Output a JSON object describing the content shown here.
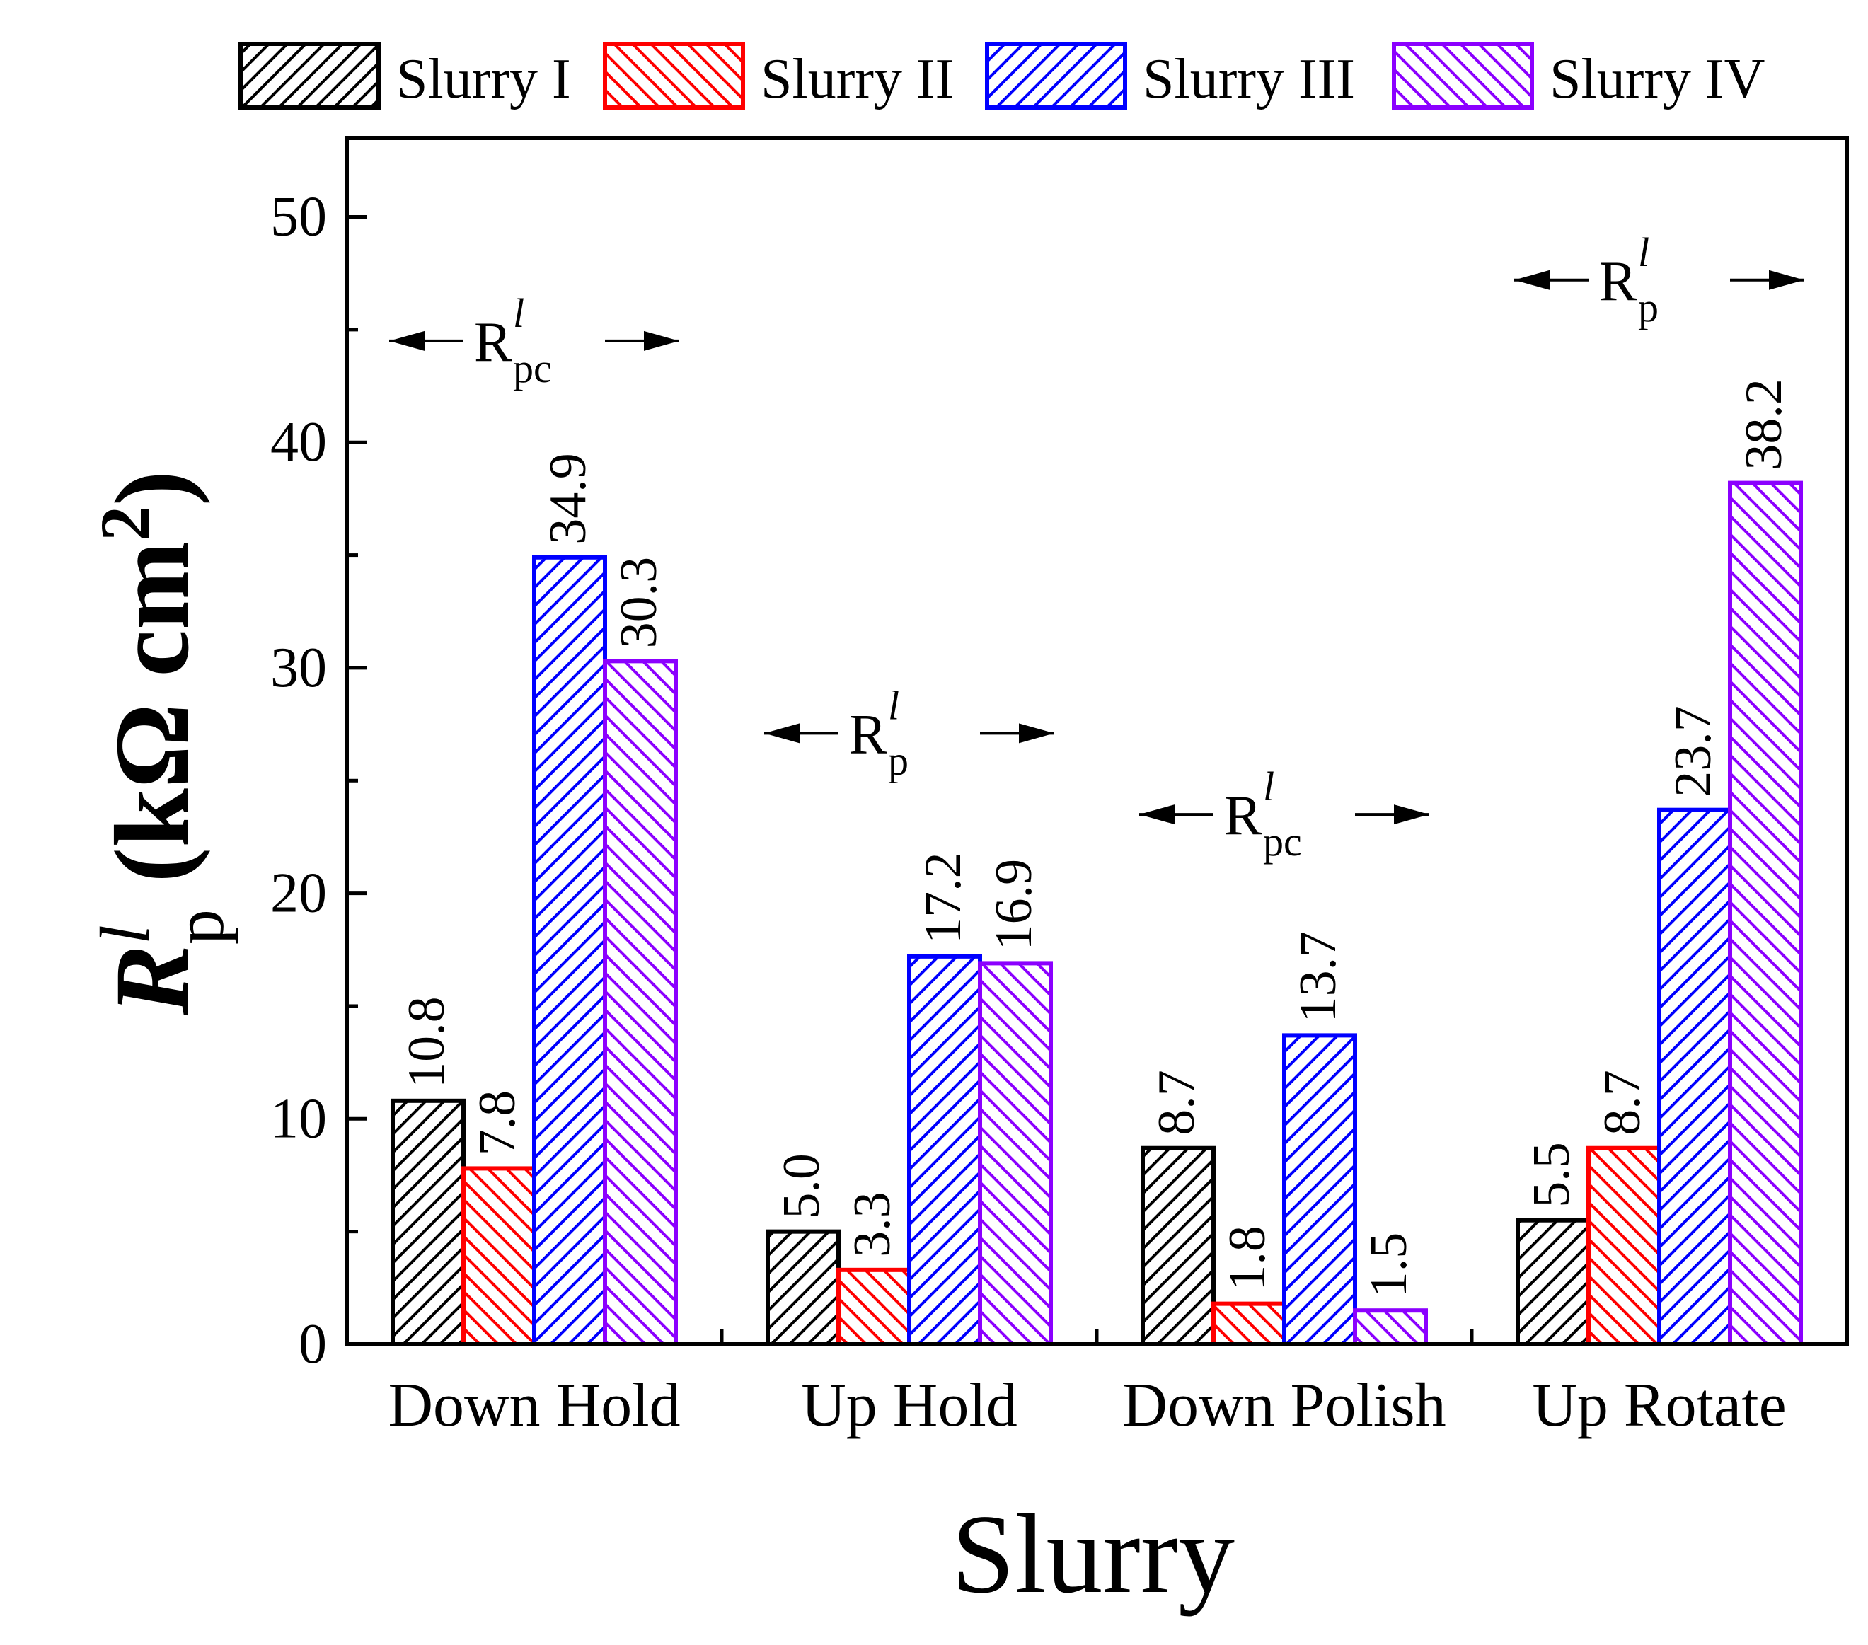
{
  "chart_data": {
    "type": "bar",
    "xlabel": "Slurry",
    "ylabel": {
      "main": "R",
      "sup": "l",
      "sub": "p",
      "unit_prefix": "(kΩ cm",
      "unit_sup": "2",
      "unit_suffix": ")"
    },
    "ylim": [
      0,
      53.5
    ],
    "yticks": [
      0,
      10,
      20,
      30,
      40,
      50
    ],
    "categories": [
      "Down Hold",
      "Up Hold",
      "Down Polish",
      "Up Rotate"
    ],
    "series": [
      {
        "name": "Slurry I",
        "color": "#000000",
        "hatch": "forward",
        "values": [
          10.8,
          5.0,
          8.7,
          5.5
        ],
        "labels": [
          "10.8",
          "5.0",
          "8.7",
          "5.5"
        ]
      },
      {
        "name": "Slurry II",
        "color": "#ff0000",
        "hatch": "backward",
        "values": [
          7.8,
          3.3,
          1.8,
          8.7
        ],
        "labels": [
          "7.8",
          "3.3",
          "1.8",
          "8.7"
        ]
      },
      {
        "name": "Slurry III",
        "color": "#0000ff",
        "hatch": "forward",
        "values": [
          34.9,
          17.2,
          13.7,
          23.7
        ],
        "labels": [
          "34.9",
          "17.2",
          "13.7",
          "23.7"
        ]
      },
      {
        "name": "Slurry IV",
        "color": "#8b00ff",
        "hatch": "backward",
        "values": [
          30.3,
          16.9,
          1.5,
          38.2
        ],
        "labels": [
          "30.3",
          "16.9",
          "1.5",
          "38.2"
        ]
      }
    ],
    "annotations": [
      {
        "category": "Down Hold",
        "base": "R",
        "sup": "l",
        "sub": "pc",
        "y": 44.5
      },
      {
        "category": "Up Hold",
        "base": "R",
        "sup": "l",
        "sub": "p",
        "y": 27.1
      },
      {
        "category": "Down Polish",
        "base": "R",
        "sup": "l",
        "sub": "pc",
        "y": 23.5
      },
      {
        "category": "Up Rotate",
        "base": "R",
        "sup": "l",
        "sub": "p",
        "y": 47.2
      }
    ]
  }
}
